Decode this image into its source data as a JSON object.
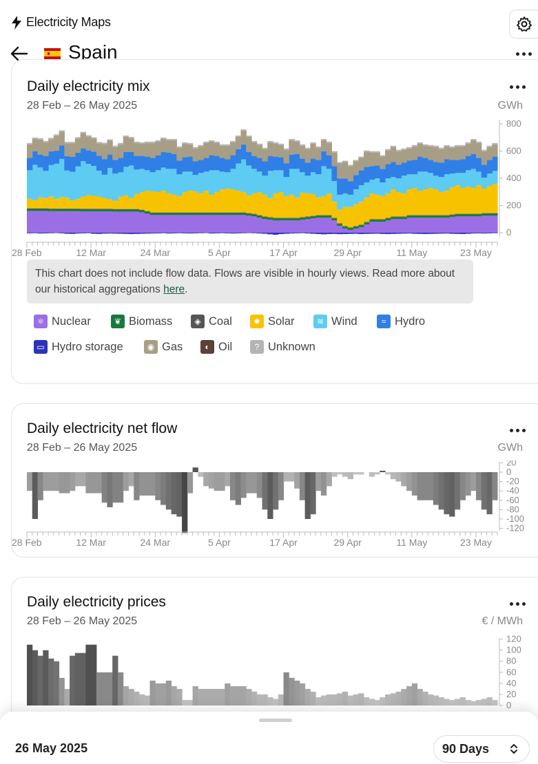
{
  "app": {
    "name": "Electricity Maps"
  },
  "zone": {
    "name": "Spain"
  },
  "mix_card": {
    "title": "Daily electricity mix",
    "date_range": "28 Feb – 26 May 2025",
    "unit": "GWh",
    "notice_text": "This chart does not include flow data. Flows are visible in hourly views. Read more about our historical aggregations ",
    "notice_link": "here",
    "notice_end": "."
  },
  "legend": [
    {
      "label": "Nuclear",
      "color": "#9b6ee6",
      "icon": "atom-icon",
      "glyph": "⚛"
    },
    {
      "label": "Biomass",
      "color": "#167a3d",
      "icon": "leaf-icon",
      "glyph": "❦"
    },
    {
      "label": "Coal",
      "color": "#555555",
      "icon": "fire-icon",
      "glyph": "◈"
    },
    {
      "label": "Solar",
      "color": "#f7c300",
      "icon": "sun-icon",
      "glyph": "✹"
    },
    {
      "label": "Wind",
      "color": "#5ecbf3",
      "icon": "wind-icon",
      "glyph": "≋"
    },
    {
      "label": "Hydro",
      "color": "#2f7fe6",
      "icon": "waves-icon",
      "glyph": "≈"
    },
    {
      "label": "Hydro storage",
      "color": "#2b34b8",
      "icon": "battery-icon",
      "glyph": "▭"
    },
    {
      "label": "Gas",
      "color": "#a89e86",
      "icon": "flame-icon",
      "glyph": "◉"
    },
    {
      "label": "Oil",
      "color": "#5a4237",
      "icon": "droplet-icon",
      "glyph": "◐"
    },
    {
      "label": "Unknown",
      "color": "#b4b4b4",
      "icon": "question-icon",
      "glyph": "?"
    }
  ],
  "flow_card": {
    "title": "Daily electricity net flow",
    "date_range": "28 Feb – 26 May 2025",
    "unit": "GWh"
  },
  "price_card": {
    "title": "Daily electricity prices",
    "date_range": "28 Feb – 26 May 2025",
    "unit": "€ / MWh"
  },
  "bottom": {
    "date": "26 May 2025",
    "range": "90 Days"
  },
  "chart_data": [
    {
      "type": "area",
      "title": "Daily electricity mix",
      "x_ticks": [
        "28 Feb",
        "12 Mar",
        "24 Mar",
        "5 Apr",
        "17 Apr",
        "29 Apr",
        "11 May",
        "23 May"
      ],
      "y_ticks": [
        "800",
        "600",
        "400",
        "200",
        "0"
      ],
      "ylim": [
        -30,
        830
      ],
      "days": 88,
      "series": [
        {
          "name": "Hydro storage",
          "values": [
            -5,
            -4,
            -6,
            -5,
            -4,
            -3,
            -5,
            -8,
            -9,
            -6,
            -5,
            -4,
            -8,
            -9,
            -7,
            -6,
            -7,
            -8,
            -9,
            -10,
            -9,
            -8,
            -7,
            -6,
            -5,
            -4,
            -6,
            -5,
            -4,
            -5,
            -6,
            -5,
            -4,
            -3,
            -6,
            -5,
            -4,
            -5,
            -6,
            -5,
            -4,
            -3,
            -4,
            -6,
            -8,
            -12,
            -15,
            -10,
            -8,
            -6,
            -5,
            -4,
            -6,
            -8,
            -10,
            -12,
            -10,
            -9,
            -11,
            -10,
            -9,
            -8,
            -10,
            -9,
            -8,
            -7,
            -9,
            -10,
            -9,
            -8,
            -7,
            -6,
            -8,
            -9,
            -10,
            -9,
            -8,
            -7,
            -6,
            -8,
            -9,
            -10,
            -8,
            -6,
            -5,
            -6,
            -5,
            -4
          ]
        },
        {
          "name": "Nuclear",
          "values": [
            160,
            160,
            160,
            160,
            158,
            158,
            158,
            158,
            158,
            158,
            157,
            157,
            157,
            157,
            157,
            157,
            155,
            155,
            155,
            155,
            155,
            150,
            140,
            130,
            130,
            130,
            130,
            130,
            130,
            130,
            130,
            130,
            130,
            130,
            130,
            130,
            130,
            130,
            130,
            130,
            130,
            125,
            120,
            110,
            100,
            95,
            90,
            90,
            90,
            90,
            90,
            95,
            100,
            105,
            110,
            110,
            110,
            90,
            50,
            30,
            20,
            30,
            40,
            60,
            80,
            80,
            80,
            90,
            100,
            100,
            100,
            110,
            110,
            110,
            110,
            110,
            110,
            110,
            110,
            115,
            120,
            120,
            120,
            120,
            120,
            125,
            125,
            125
          ]
        },
        {
          "name": "Biomass",
          "values": [
            15,
            15,
            15,
            15,
            15,
            15,
            15,
            15,
            15,
            15,
            15,
            15,
            15,
            15,
            15,
            15,
            15,
            15,
            15,
            15,
            15,
            15,
            15,
            15,
            15,
            15,
            15,
            15,
            15,
            15,
            15,
            15,
            15,
            15,
            15,
            15,
            15,
            15,
            15,
            15,
            15,
            15,
            15,
            15,
            15,
            15,
            15,
            15,
            15,
            15,
            15,
            15,
            15,
            15,
            15,
            15,
            15,
            15,
            15,
            15,
            15,
            15,
            15,
            15,
            15,
            15,
            15,
            15,
            15,
            15,
            15,
            15,
            15,
            15,
            15,
            15,
            15,
            15,
            15,
            15,
            15,
            15,
            15,
            15,
            15,
            15,
            15,
            15
          ]
        },
        {
          "name": "Coal",
          "values": [
            4,
            4,
            4,
            4,
            4,
            4,
            4,
            4,
            4,
            4,
            4,
            4,
            4,
            4,
            4,
            4,
            4,
            4,
            4,
            4,
            4,
            4,
            4,
            4,
            4,
            4,
            4,
            4,
            4,
            4,
            4,
            4,
            4,
            4,
            4,
            4,
            4,
            4,
            4,
            4,
            4,
            4,
            4,
            4,
            4,
            4,
            4,
            4,
            4,
            4,
            4,
            4,
            4,
            4,
            4,
            4,
            4,
            4,
            4,
            4,
            4,
            4,
            4,
            4,
            4,
            4,
            4,
            4,
            4,
            4,
            4,
            4,
            4,
            4,
            4,
            4,
            4,
            4,
            4,
            4,
            4,
            4,
            4,
            4,
            4,
            4,
            4,
            4
          ]
        },
        {
          "name": "Solar",
          "values": [
            70,
            60,
            80,
            75,
            90,
            70,
            85,
            80,
            60,
            70,
            90,
            100,
            95,
            90,
            80,
            70,
            60,
            90,
            100,
            80,
            110,
            130,
            150,
            155,
            150,
            160,
            140,
            130,
            120,
            150,
            160,
            155,
            140,
            160,
            130,
            150,
            170,
            175,
            170,
            160,
            150,
            130,
            150,
            170,
            160,
            140,
            180,
            190,
            160,
            170,
            150,
            180,
            170,
            160,
            130,
            140,
            160,
            120,
            100,
            140,
            150,
            160,
            170,
            180,
            190,
            180,
            170,
            180,
            200,
            180,
            170,
            190,
            200,
            180,
            190,
            200,
            190,
            170,
            180,
            200,
            210,
            190,
            200,
            190,
            210,
            180,
            200,
            215
          ]
        },
        {
          "name": "Wind",
          "values": [
            210,
            260,
            220,
            200,
            230,
            260,
            280,
            200,
            210,
            240,
            260,
            230,
            220,
            190,
            170,
            230,
            200,
            180,
            210,
            240,
            180,
            170,
            150,
            140,
            160,
            170,
            180,
            190,
            160,
            150,
            140,
            120,
            150,
            140,
            180,
            160,
            130,
            120,
            150,
            200,
            240,
            220,
            180,
            150,
            140,
            200,
            170,
            160,
            140,
            190,
            210,
            150,
            130,
            160,
            170,
            220,
            180,
            150,
            110,
            100,
            90,
            110,
            120,
            110,
            100,
            120,
            100,
            110,
            90,
            100,
            130,
            110,
            100,
            140,
            130,
            110,
            100,
            110,
            120,
            100,
            90,
            110,
            120,
            140,
            100,
            80,
            90,
            95
          ]
        },
        {
          "name": "Hydro",
          "values": [
            90,
            100,
            95,
            110,
            100,
            95,
            100,
            105,
            110,
            100,
            95,
            100,
            105,
            110,
            115,
            100,
            100,
            105,
            110,
            100,
            100,
            95,
            100,
            105,
            110,
            115,
            120,
            110,
            100,
            105,
            110,
            100,
            95,
            100,
            110,
            105,
            100,
            95,
            100,
            105,
            110,
            100,
            95,
            100,
            105,
            110,
            100,
            95,
            100,
            105,
            110,
            100,
            95,
            100,
            105,
            110,
            100,
            110,
            120,
            110,
            100,
            105,
            110,
            115,
            100,
            95,
            100,
            105,
            110,
            100,
            95,
            100,
            105,
            110,
            100,
            95,
            100,
            105,
            110,
            100,
            95,
            100,
            105,
            110,
            100,
            95,
            100,
            105
          ]
        },
        {
          "name": "Gas",
          "values": [
            100,
            90,
            110,
            100,
            90,
            110,
            100,
            95,
            100,
            105,
            110,
            100,
            95,
            90,
            110,
            100,
            95,
            100,
            110,
            100,
            95,
            90,
            100,
            110,
            100,
            95,
            90,
            100,
            95,
            100,
            90,
            95,
            100,
            110,
            100,
            95,
            90,
            100,
            95,
            90,
            100,
            110,
            100,
            95,
            90,
            100,
            95,
            90,
            100,
            105,
            90,
            95,
            100,
            110,
            90,
            80,
            90,
            100,
            110,
            120,
            110,
            100,
            90,
            110,
            100,
            95,
            90,
            100,
            110,
            100,
            95,
            90,
            100,
            95,
            90,
            100,
            110,
            100,
            95,
            90,
            100,
            95,
            90,
            100,
            110,
            100,
            95,
            90
          ]
        },
        {
          "name": "Unknown",
          "values": [
            10,
            10,
            10,
            10,
            10,
            10,
            10,
            10,
            10,
            10,
            10,
            10,
            10,
            10,
            10,
            10,
            10,
            10,
            10,
            10,
            10,
            10,
            10,
            10,
            10,
            10,
            10,
            10,
            10,
            10,
            10,
            10,
            10,
            10,
            10,
            10,
            10,
            10,
            10,
            10,
            10,
            10,
            10,
            10,
            10,
            10,
            10,
            10,
            10,
            10,
            10,
            10,
            10,
            10,
            10,
            10,
            10,
            10,
            10,
            10,
            10,
            10,
            10,
            10,
            10,
            10,
            10,
            10,
            10,
            10,
            10,
            10,
            10,
            10,
            10,
            10,
            10,
            10,
            10,
            10,
            10,
            10,
            10,
            10,
            10,
            10,
            10,
            10
          ]
        }
      ]
    },
    {
      "type": "bar",
      "title": "Daily electricity net flow",
      "x_ticks": [
        "28 Feb",
        "12 Mar",
        "24 Mar",
        "5 Apr",
        "17 Apr",
        "29 Apr",
        "11 May",
        "23 May"
      ],
      "y_ticks": [
        "20",
        "0",
        "-20",
        "-40",
        "-60",
        "-80",
        "-100",
        "-120"
      ],
      "ylim": [
        -125,
        22
      ],
      "values": [
        -40,
        -100,
        -60,
        -40,
        -40,
        -40,
        -45,
        -45,
        -40,
        -30,
        -30,
        -45,
        -45,
        -45,
        -65,
        -75,
        -65,
        -65,
        -40,
        -30,
        -60,
        -50,
        -50,
        -50,
        -60,
        -70,
        -80,
        -90,
        -95,
        -130,
        -45,
        10,
        -10,
        -30,
        -35,
        -40,
        -40,
        -30,
        -60,
        -70,
        -55,
        -45,
        -45,
        -55,
        -80,
        -100,
        -80,
        -60,
        -20,
        -20,
        -35,
        -60,
        -100,
        -90,
        -40,
        -50,
        -30,
        -10,
        -5,
        -10,
        -15,
        -5,
        -5,
        0,
        -10,
        -5,
        3,
        -5,
        -15,
        -20,
        -30,
        -40,
        -50,
        -60,
        -60,
        -60,
        -70,
        -80,
        -90,
        -95,
        -80,
        -60,
        -50,
        -40,
        -60,
        -80,
        -90,
        -60
      ]
    },
    {
      "type": "bar",
      "title": "Daily electricity prices",
      "x_ticks": [
        "28 Feb",
        "12 Mar",
        "24 Mar",
        "5 Apr",
        "17 Apr",
        "29 Apr",
        "11 May",
        "23 May"
      ],
      "y_ticks": [
        "120",
        "100",
        "80",
        "60",
        "40",
        "20",
        "0"
      ],
      "ylim": [
        0,
        122
      ],
      "values": [
        110,
        100,
        90,
        100,
        85,
        80,
        50,
        30,
        90,
        95,
        95,
        110,
        110,
        60,
        60,
        60,
        90,
        60,
        35,
        30,
        25,
        20,
        18,
        45,
        40,
        40,
        45,
        35,
        30,
        10,
        10,
        35,
        30,
        30,
        30,
        30,
        30,
        40,
        35,
        35,
        35,
        30,
        25,
        20,
        20,
        15,
        12,
        20,
        60,
        50,
        45,
        40,
        30,
        25,
        15,
        18,
        20,
        20,
        22,
        25,
        18,
        20,
        22,
        15,
        12,
        10,
        15,
        20,
        22,
        25,
        30,
        35,
        40,
        30,
        25,
        20,
        18,
        15,
        12,
        10,
        12,
        15,
        10,
        8,
        10,
        12,
        15,
        10
      ]
    }
  ]
}
